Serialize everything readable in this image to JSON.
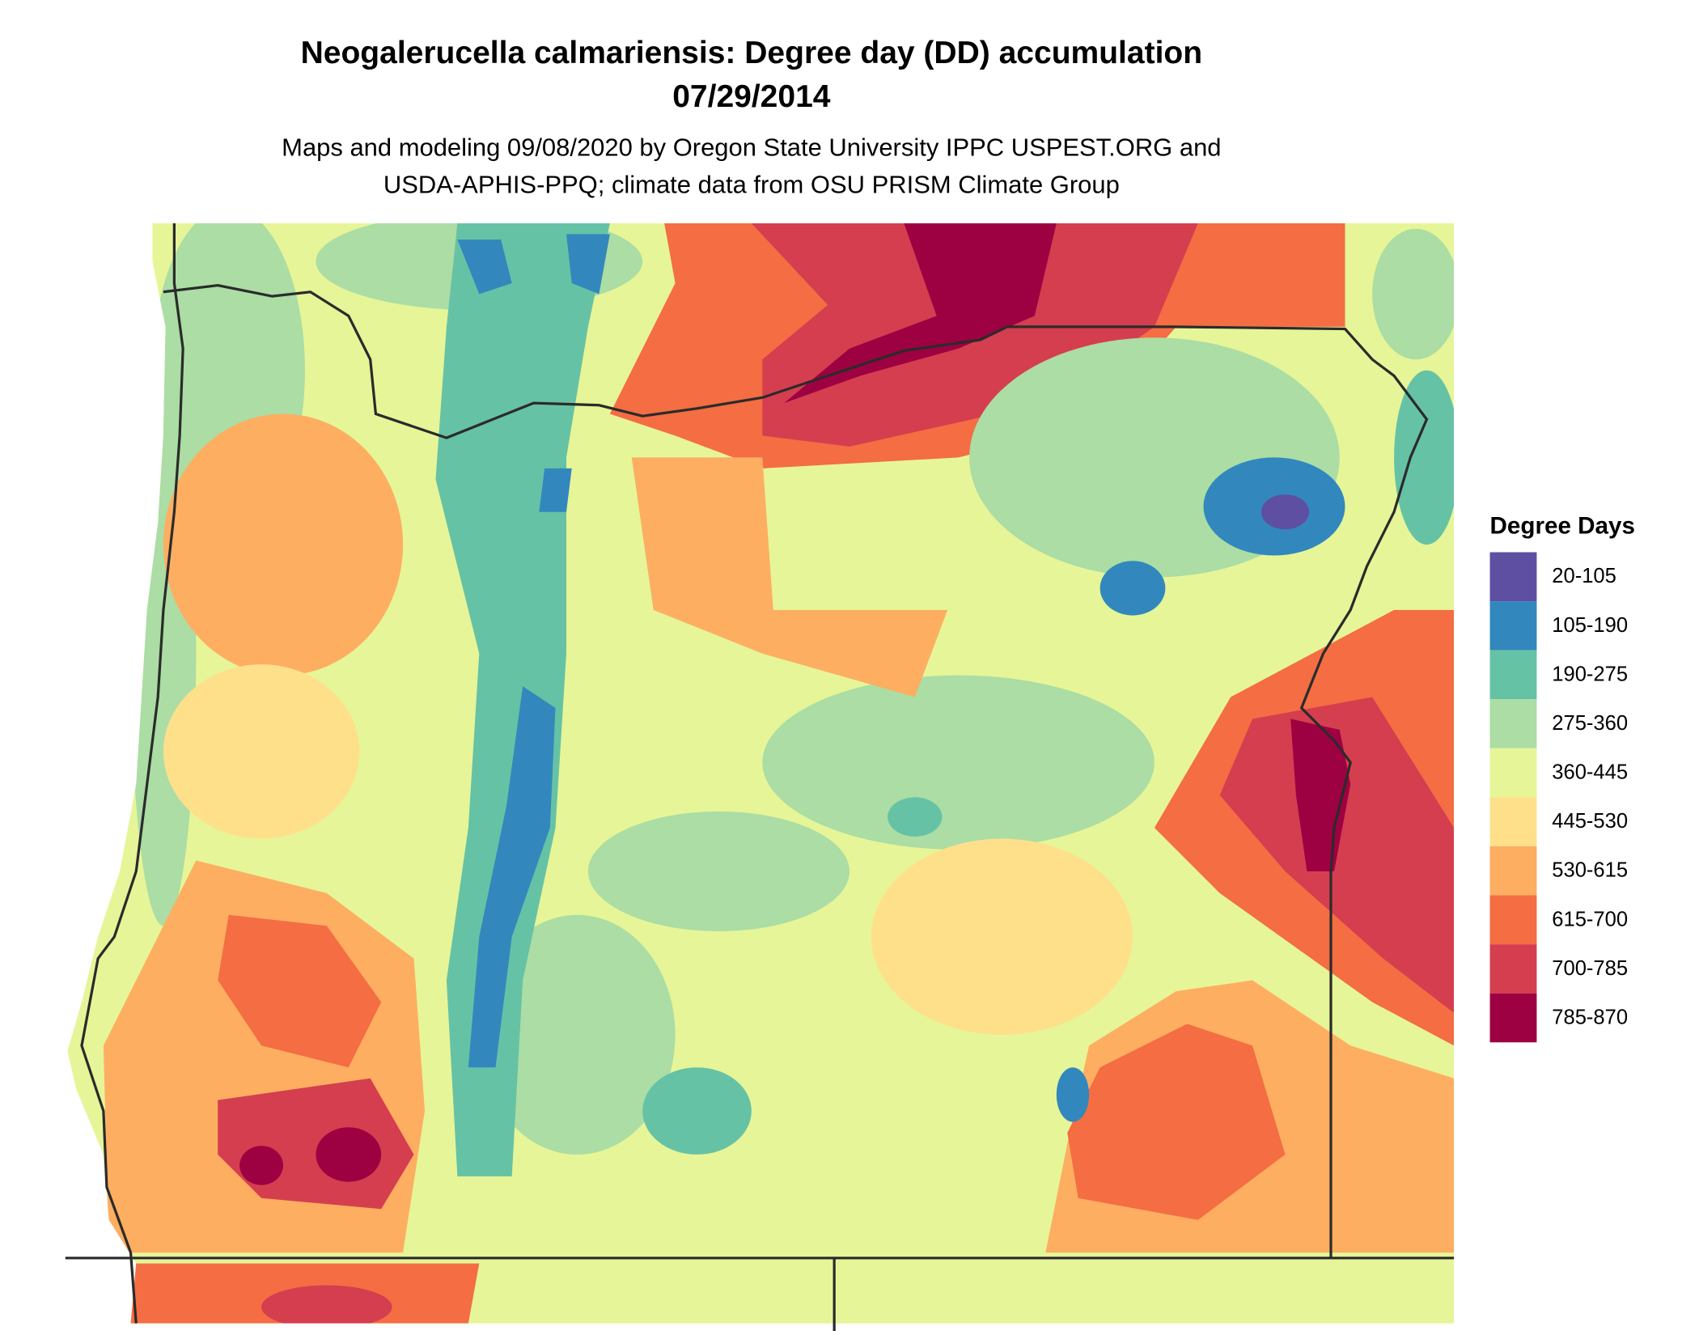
{
  "title": "Neogalerucella calmariensis: Degree day (DD) accumulation",
  "date": "07/29/2014",
  "subtitle": [
    "Maps and modeling 09/08/2020 by Oregon State University IPPC USPEST.ORG and",
    "USDA-APHIS-PPQ; climate data from OSU PRISM Climate Group"
  ],
  "legend": {
    "title": "Degree Days",
    "items": [
      {
        "label": "20-105",
        "color": "#5e4fa2"
      },
      {
        "label": "105-190",
        "color": "#3288bd"
      },
      {
        "label": "190-275",
        "color": "#66c2a5"
      },
      {
        "label": "275-360",
        "color": "#abdda4"
      },
      {
        "label": "360-445",
        "color": "#e6f598"
      },
      {
        "label": "445-530",
        "color": "#fee08b"
      },
      {
        "label": "530-615",
        "color": "#fdae61"
      },
      {
        "label": "615-700",
        "color": "#f46d43"
      },
      {
        "label": "700-785",
        "color": "#d53e4f"
      },
      {
        "label": "785-870",
        "color": "#9e0142"
      }
    ]
  }
}
